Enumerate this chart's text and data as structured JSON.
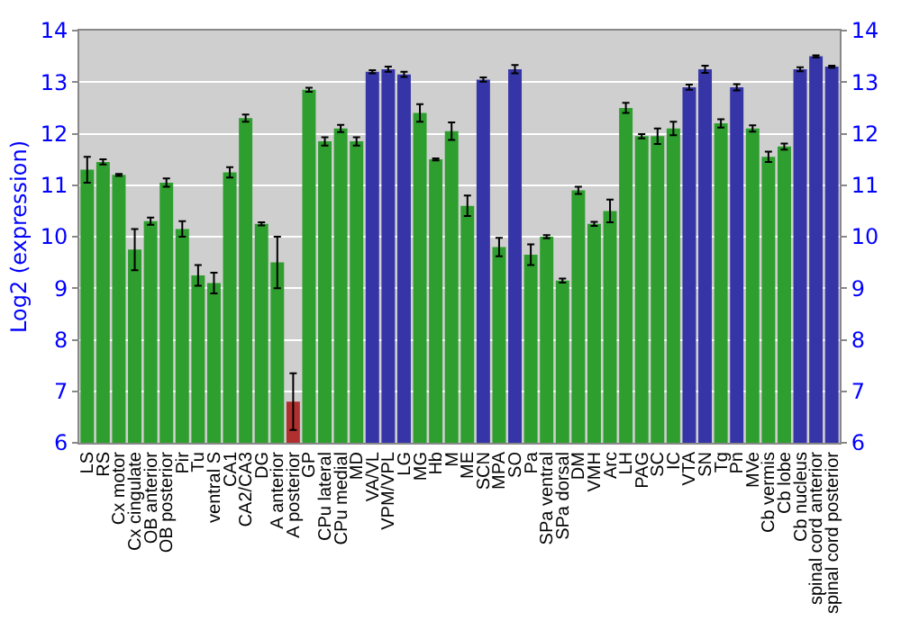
{
  "chart_data": {
    "type": "bar",
    "ylabel": "Log2 (expression)",
    "categories": [
      "LS",
      "RS",
      "Cx motor",
      "Cx cingulate",
      "OB anterior",
      "OB posterior",
      "Pir",
      "Tu",
      "ventral S",
      "CA1",
      "CA2/CA3",
      "DG",
      "A anterior",
      "A posterior",
      "GP",
      "CPu lateral",
      "CPu medial",
      "MD",
      "VA/VL",
      "VPM/VPL",
      "LG",
      "MG",
      "Hb",
      "M",
      "ME",
      "SCN",
      "MPA",
      "SO",
      "Pa",
      "SPa ventral",
      "SPa dorsal",
      "DM",
      "VMH",
      "Arc",
      "LH",
      "PAG",
      "SC",
      "IC",
      "VTA",
      "SN",
      "Tg",
      "Pn",
      "MVe",
      "Cb vermis",
      "Cb lobe",
      "Cb nucleus",
      "spinal cord anterior",
      "spinal cord posterior"
    ],
    "values": [
      11.3,
      11.45,
      11.2,
      9.75,
      10.3,
      11.05,
      10.15,
      9.25,
      9.1,
      11.25,
      12.3,
      10.25,
      9.5,
      6.8,
      12.85,
      11.85,
      12.1,
      11.85,
      13.2,
      13.25,
      13.15,
      12.4,
      11.5,
      12.05,
      10.6,
      13.05,
      9.8,
      13.25,
      9.65,
      10.0,
      9.15,
      10.9,
      10.25,
      10.5,
      12.5,
      11.95,
      11.95,
      12.1,
      12.9,
      13.25,
      12.2,
      12.9,
      12.1,
      11.55,
      11.75,
      13.25,
      13.5,
      13.3
    ],
    "errors": [
      0.25,
      0.05,
      0.02,
      0.4,
      0.07,
      0.08,
      0.15,
      0.2,
      0.2,
      0.1,
      0.07,
      0.03,
      0.5,
      0.55,
      0.04,
      0.08,
      0.07,
      0.08,
      0.03,
      0.05,
      0.05,
      0.17,
      0.02,
      0.17,
      0.2,
      0.04,
      0.18,
      0.08,
      0.2,
      0.03,
      0.04,
      0.07,
      0.04,
      0.22,
      0.1,
      0.04,
      0.15,
      0.13,
      0.05,
      0.07,
      0.08,
      0.06,
      0.06,
      0.1,
      0.06,
      0.04,
      0.02,
      0.02
    ],
    "colors": [
      "#2e9e2e",
      "#2e9e2e",
      "#2e9e2e",
      "#2e9e2e",
      "#2e9e2e",
      "#2e9e2e",
      "#2e9e2e",
      "#2e9e2e",
      "#2e9e2e",
      "#2e9e2e",
      "#2e9e2e",
      "#2e9e2e",
      "#2e9e2e",
      "#b03030",
      "#2e9e2e",
      "#2e9e2e",
      "#2e9e2e",
      "#2e9e2e",
      "#3535a8",
      "#3535a8",
      "#3535a8",
      "#2e9e2e",
      "#2e9e2e",
      "#2e9e2e",
      "#2e9e2e",
      "#3535a8",
      "#2e9e2e",
      "#3535a8",
      "#2e9e2e",
      "#2e9e2e",
      "#2e9e2e",
      "#2e9e2e",
      "#2e9e2e",
      "#2e9e2e",
      "#2e9e2e",
      "#2e9e2e",
      "#2e9e2e",
      "#2e9e2e",
      "#3535a8",
      "#3535a8",
      "#2e9e2e",
      "#3535a8",
      "#2e9e2e",
      "#2e9e2e",
      "#2e9e2e",
      "#3535a8",
      "#3535a8",
      "#3535a8"
    ],
    "ylim": [
      6,
      14
    ],
    "yticks": [
      6,
      7,
      8,
      9,
      10,
      11,
      12,
      13,
      14
    ],
    "y2lim": [
      6,
      14
    ],
    "y2ticks": [
      6,
      7,
      8,
      9,
      10,
      11,
      12,
      13,
      14
    ],
    "grid": "y"
  }
}
